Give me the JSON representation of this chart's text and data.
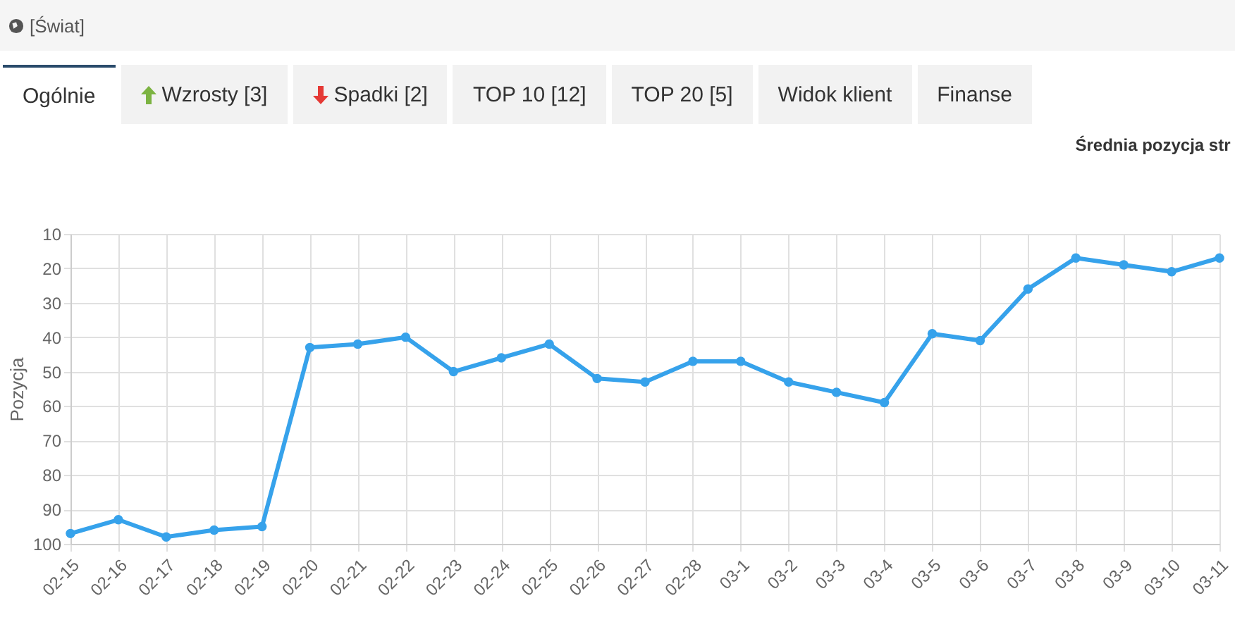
{
  "chart_data": {
    "type": "line",
    "title": "Średnia pozycja str",
    "ylabel": "Pozycja",
    "annotations": [
      "[Świat]",
      "Ogólnie",
      "Wzrosty [3]",
      "Spadki [2]",
      "TOP 10 [12]",
      "TOP 20 [5]",
      "Widok klient",
      "Finanse"
    ],
    "categories": [
      "02-15",
      "02-16",
      "02-17",
      "02-18",
      "02-19",
      "02-20",
      "02-21",
      "02-22",
      "02-23",
      "02-24",
      "02-25",
      "02-26",
      "02-27",
      "02-28",
      "03-1",
      "03-2",
      "03-3",
      "03-4",
      "03-5",
      "03-6",
      "03-7",
      "03-8",
      "03-9",
      "03-10",
      "03-11"
    ],
    "series": [
      {
        "color": "#36a2eb",
        "values": [
          97,
          93,
          98,
          96,
          95,
          43,
          42,
          40,
          50,
          46,
          42,
          52,
          53,
          47,
          47,
          53,
          56,
          59,
          39,
          41,
          26,
          17,
          19,
          21,
          17
        ]
      }
    ],
    "ylim": [
      100,
      10
    ],
    "yticks": [
      10,
      20,
      30,
      40,
      50,
      60,
      70,
      80,
      90,
      100
    ],
    "grid": true,
    "marker": "circle",
    "line_style": "solid"
  }
}
